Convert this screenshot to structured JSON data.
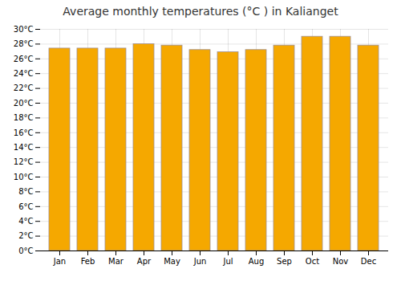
{
  "chart_data": {
    "type": "bar",
    "title": "Average monthly temperatures (°C ) in Kalianget",
    "categories": [
      "Jan",
      "Feb",
      "Mar",
      "Apr",
      "May",
      "Jun",
      "Jul",
      "Aug",
      "Sep",
      "Oct",
      "Nov",
      "Dec"
    ],
    "values": [
      27.4,
      27.4,
      27.4,
      28.0,
      27.8,
      27.2,
      26.9,
      27.2,
      27.8,
      29.0,
      29.0,
      27.8
    ],
    "color": "#F5A800",
    "ylim": [
      0,
      30
    ],
    "yticks": [
      {
        "value": 0,
        "label": "0°C"
      },
      {
        "value": 2,
        "label": "2°C"
      },
      {
        "value": 4,
        "label": "4°C"
      },
      {
        "value": 6,
        "label": "6°C"
      },
      {
        "value": 8,
        "label": "8°C"
      },
      {
        "value": 10,
        "label": "10°C"
      },
      {
        "value": 12,
        "label": "12°C"
      },
      {
        "value": 14,
        "label": "14°C"
      },
      {
        "value": 16,
        "label": "16°C"
      },
      {
        "value": 18,
        "label": "18°C"
      },
      {
        "value": 20,
        "label": "20°C"
      },
      {
        "value": 22,
        "label": "22°C"
      },
      {
        "value": 24,
        "label": "24°C"
      },
      {
        "value": 26,
        "label": "26°C"
      },
      {
        "value": 28,
        "label": "28°C"
      },
      {
        "value": 30,
        "label": "30°C"
      }
    ],
    "grid": true
  }
}
